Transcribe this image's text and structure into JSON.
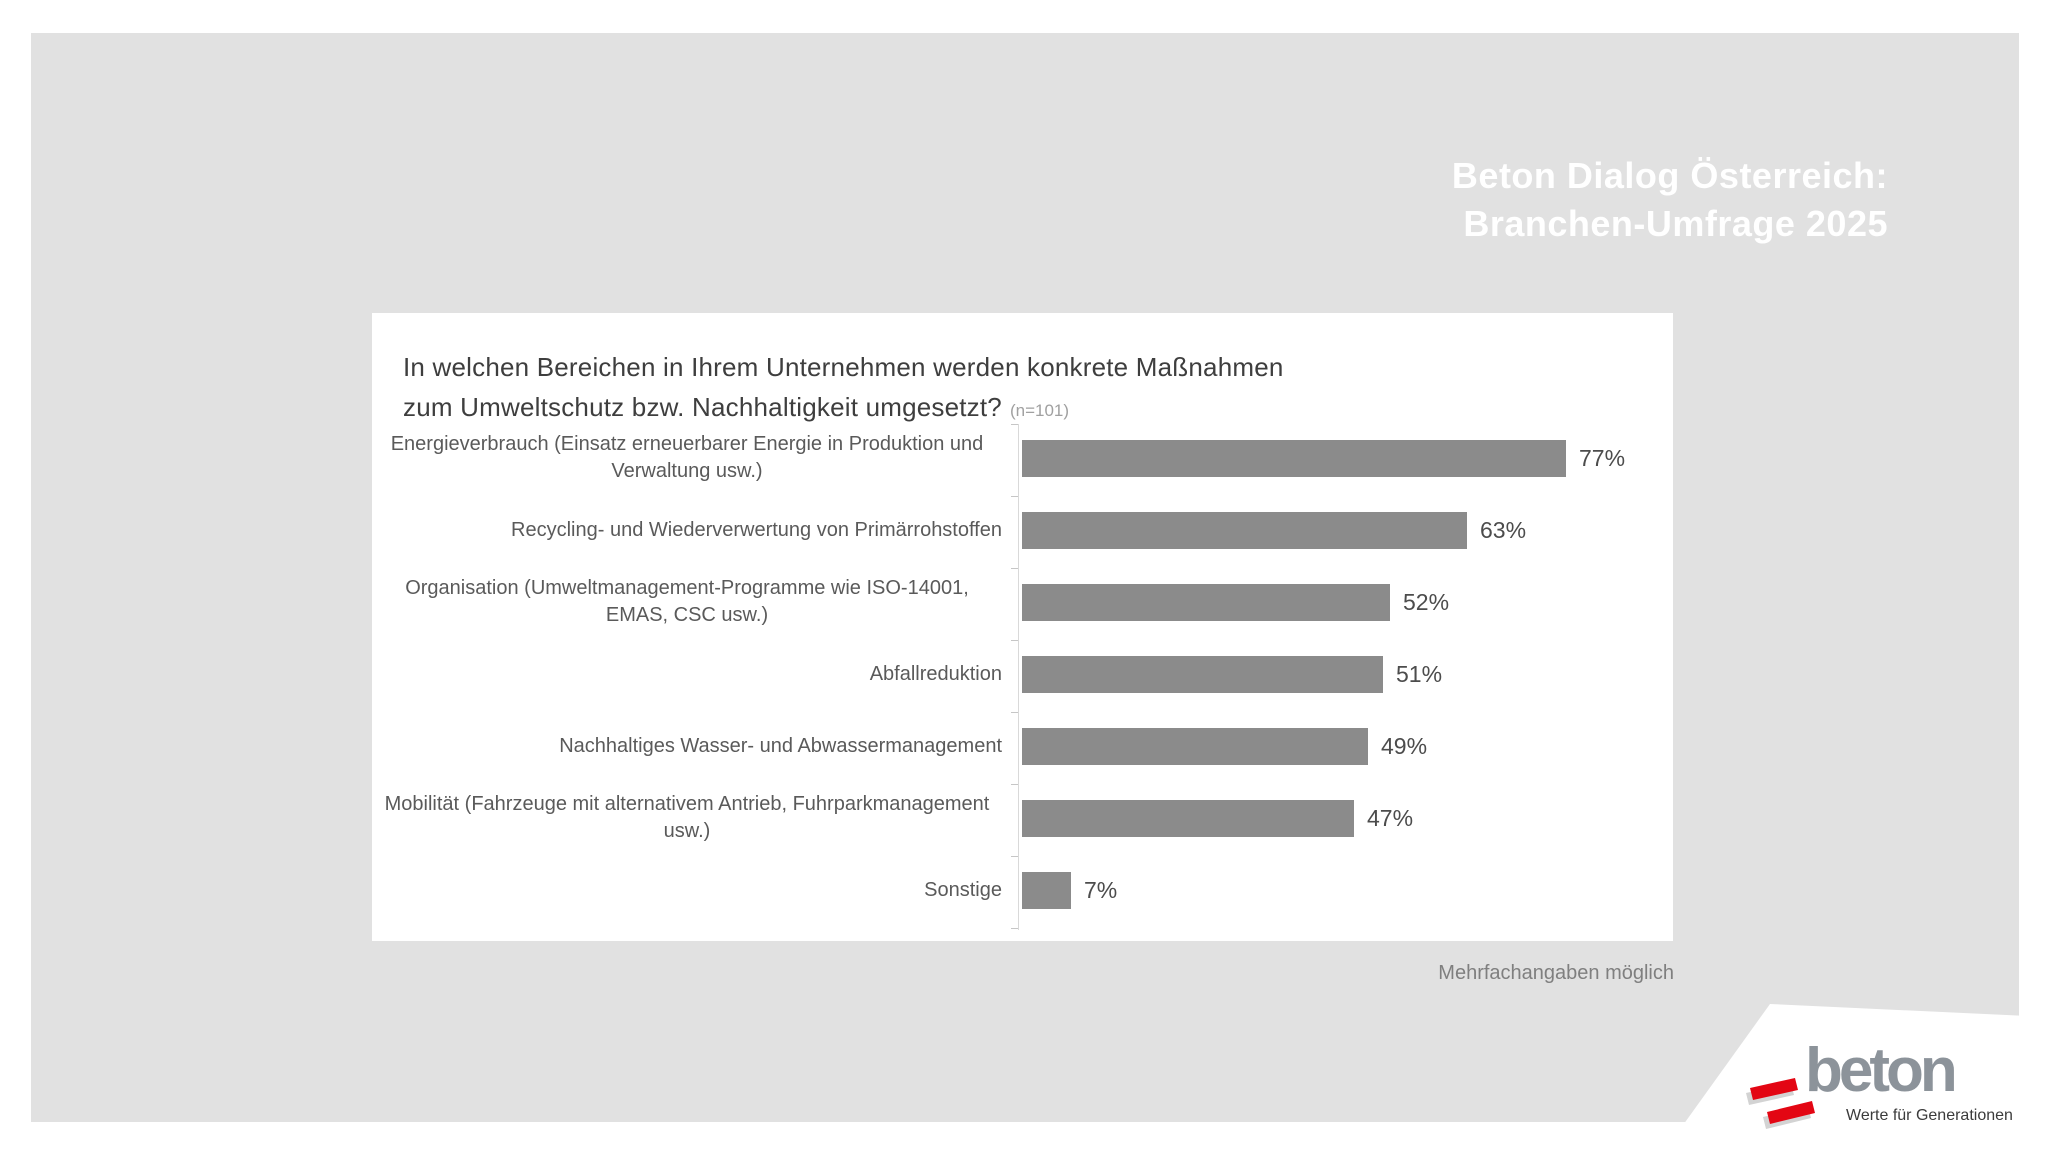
{
  "header": {
    "title_line1": "Beton Dialog Österreich:",
    "title_line2": "Branchen-Umfrage 2025"
  },
  "question": {
    "line1": "In welchen Bereichen in Ihrem Unternehmen werden konkrete Maßnahmen",
    "line2": "zum Umweltschutz bzw. Nachhaltigkeit umgesetzt?",
    "sample": "(n=101)"
  },
  "chart_data": {
    "type": "bar",
    "orientation": "horizontal",
    "title": "In welchen Bereichen in Ihrem Unternehmen werden konkrete Maßnahmen zum Umweltschutz bzw. Nachhaltigkeit umgesetzt?",
    "sample_size": "n=101",
    "categories": [
      "Energieverbrauch (Einsatz erneuerbarer Energie in Produktion und Verwaltung usw.)",
      "Recycling- und Wiederverwertung von Primärrohstoffen",
      "Organisation (Umweltmanagement-Programme wie ISO-14001, EMAS, CSC usw.)",
      "Abfallreduktion",
      "Nachhaltiges Wasser- und Abwassermanagement",
      "Mobilität (Fahrzeuge mit alternativem Antrieb, Fuhrparkmanagement usw.)",
      "Sonstige"
    ],
    "values": [
      77,
      63,
      52,
      51,
      49,
      47,
      7
    ],
    "value_labels": [
      "77%",
      "63%",
      "52%",
      "51%",
      "49%",
      "47%",
      "7%"
    ],
    "value_suffix": "%",
    "xlim": [
      0,
      100
    ],
    "grid": false,
    "legend": false,
    "bar_color": "#8b8b8b",
    "note": "Mehrfachangaben möglich"
  },
  "footnote": "Mehrfachangaben möglich",
  "logo": {
    "brand": "beton",
    "tagline": "Werte für Generationen"
  },
  "colors": {
    "slide_bg": "#e1e1e1",
    "card_bg": "#ffffff",
    "bar": "#8b8b8b",
    "slide_title_text": "#ffffff",
    "brand_gray": "#8c939a",
    "brand_red": "#e30613"
  }
}
